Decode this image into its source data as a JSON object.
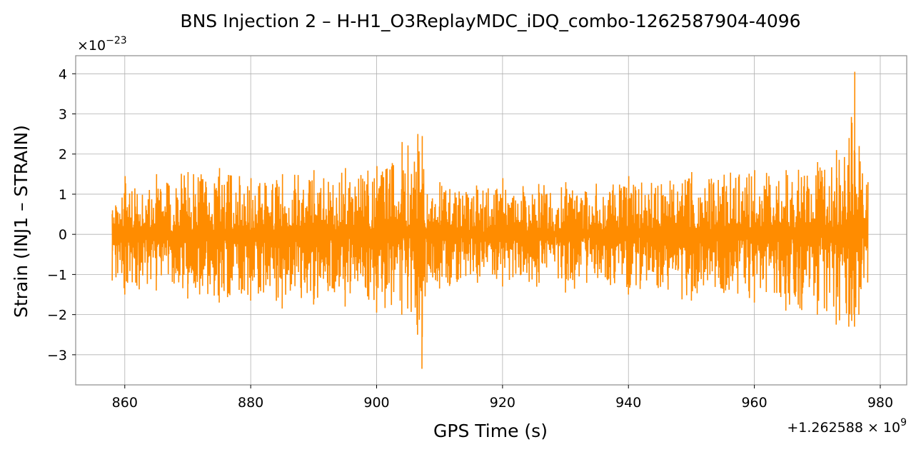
{
  "chart_data": {
    "type": "line",
    "title": "BNS Injection 2 – H-H1_O3ReplayMDC_iDQ_combo-1262587904-4096",
    "xlabel": "GPS Time (s)",
    "ylabel": "Strain (INJ1 – STRAIN)",
    "x_offset_label_prefix": "+1.262588",
    "x_offset_label_mult": "× 10",
    "x_offset_label_exp": "9",
    "y_scale_label_mult": "×10",
    "y_scale_label_exp": "−23",
    "xlim": [
      852.2,
      984.2
    ],
    "ylim": [
      -3.75,
      4.45
    ],
    "x_ticks": [
      860,
      880,
      900,
      920,
      940,
      960,
      980
    ],
    "y_ticks": [
      -3,
      -2,
      -1,
      0,
      1,
      2,
      3,
      4
    ],
    "y_tick_labels": [
      "−3",
      "−2",
      "−1",
      "0",
      "1",
      "2",
      "3",
      "4"
    ],
    "grid": true,
    "line_color": "#ff8c00",
    "series": [
      {
        "x_start": 858.0,
        "x_end": 978.0,
        "envelope": [
          {
            "x": 858.0,
            "low": -1.15,
            "high": 0.6
          },
          {
            "x": 860.0,
            "low": -1.5,
            "high": 1.45
          },
          {
            "x": 865.0,
            "low": -1.4,
            "high": 1.5
          },
          {
            "x": 870.0,
            "low": -1.6,
            "high": 1.55
          },
          {
            "x": 875.0,
            "low": -1.7,
            "high": 1.65
          },
          {
            "x": 880.0,
            "low": -1.65,
            "high": 1.4
          },
          {
            "x": 885.0,
            "low": -1.85,
            "high": 1.5
          },
          {
            "x": 890.0,
            "low": -1.75,
            "high": 1.6
          },
          {
            "x": 895.0,
            "low": -1.8,
            "high": 1.65
          },
          {
            "x": 900.0,
            "low": -1.95,
            "high": 1.7
          },
          {
            "x": 904.0,
            "low": -2.0,
            "high": 2.3
          },
          {
            "x": 906.5,
            "low": -2.5,
            "high": 2.5
          },
          {
            "x": 907.2,
            "low": -3.35,
            "high": 2.45
          },
          {
            "x": 908.0,
            "low": -1.2,
            "high": 1.0
          },
          {
            "x": 910.0,
            "low": -1.35,
            "high": 1.3
          },
          {
            "x": 920.0,
            "low": -1.3,
            "high": 1.4
          },
          {
            "x": 930.0,
            "low": -1.45,
            "high": 1.3
          },
          {
            "x": 940.0,
            "low": -1.5,
            "high": 1.45
          },
          {
            "x": 950.0,
            "low": -1.65,
            "high": 1.55
          },
          {
            "x": 960.0,
            "low": -1.7,
            "high": 1.6
          },
          {
            "x": 965.0,
            "low": -1.9,
            "high": 1.6
          },
          {
            "x": 970.0,
            "low": -2.0,
            "high": 1.8
          },
          {
            "x": 973.0,
            "low": -2.25,
            "high": 2.1
          },
          {
            "x": 975.0,
            "low": -2.3,
            "high": 2.4
          },
          {
            "x": 975.9,
            "low": -2.3,
            "high": 4.05
          },
          {
            "x": 976.6,
            "low": -2.0,
            "high": 2.2
          },
          {
            "x": 978.0,
            "low": -1.2,
            "high": 1.3
          }
        ]
      }
    ]
  }
}
